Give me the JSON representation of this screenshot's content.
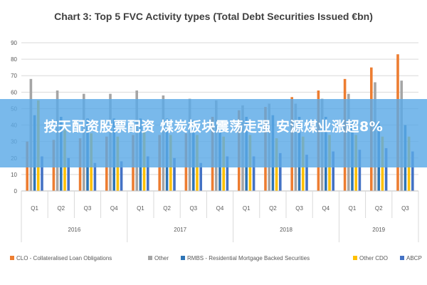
{
  "colors": {
    "clo": "#ed7d31",
    "other": "#a5a5a5",
    "rmbs": "#2e75b6",
    "other_cdo": "#ffc000",
    "abcp": "#4472c4",
    "banner": "#5ba9e6"
  },
  "overlay": {
    "text": "按天配资股票配资 煤炭板块震荡走强 安源煤业涨超8%"
  },
  "chart_data": {
    "type": "bar",
    "title": "Chart 3: Top 5 FVC Activity types (Total Debt Securities Issued €bn)",
    "xlabel": "",
    "ylabel": "",
    "ylim": [
      0,
      90
    ],
    "yticks": [
      0,
      10,
      20,
      30,
      40,
      50,
      60,
      70,
      80,
      90
    ],
    "grid": true,
    "legend_position": "bottom",
    "categories": [
      "Q1",
      "Q2",
      "Q3",
      "Q4",
      "Q1",
      "Q2",
      "Q3",
      "Q4",
      "Q1",
      "Q2",
      "Q3",
      "Q4",
      "Q1",
      "Q2",
      "Q3"
    ],
    "groups": [
      {
        "label": "2016",
        "count": 4
      },
      {
        "label": "2017",
        "count": 4
      },
      {
        "label": "2018",
        "count": 4
      },
      {
        "label": "2019",
        "count": 3
      }
    ],
    "series": [
      {
        "name": "CLO - Collateralised Loan Obligations",
        "color_key": "clo",
        "values": [
          30,
          31,
          32,
          33,
          34,
          34,
          35,
          45,
          49,
          51,
          57,
          61,
          68,
          75,
          83
        ]
      },
      {
        "name": "Other",
        "color_key": "other",
        "values": [
          68,
          61,
          59,
          59,
          61,
          58,
          56,
          55,
          52,
          53,
          53,
          56,
          59,
          66,
          67
        ]
      },
      {
        "name": "RMBS - Residential Mortgage Backed Securities",
        "color_key": "rmbs",
        "values": [
          46,
          45,
          44,
          44,
          44,
          44,
          43,
          43,
          45,
          46,
          45,
          45,
          42,
          41,
          40
        ]
      },
      {
        "name": "Other CDO",
        "color_key": "other_cdo",
        "values": [
          55,
          37,
          35,
          33,
          36,
          34,
          34,
          33,
          34,
          32,
          33,
          34,
          34,
          33,
          33
        ]
      },
      {
        "name": "ABCP",
        "color_key": "abcp",
        "values": [
          21,
          20,
          17,
          18,
          21,
          20,
          17,
          21,
          21,
          23,
          22,
          24,
          25,
          26,
          24
        ]
      }
    ]
  }
}
